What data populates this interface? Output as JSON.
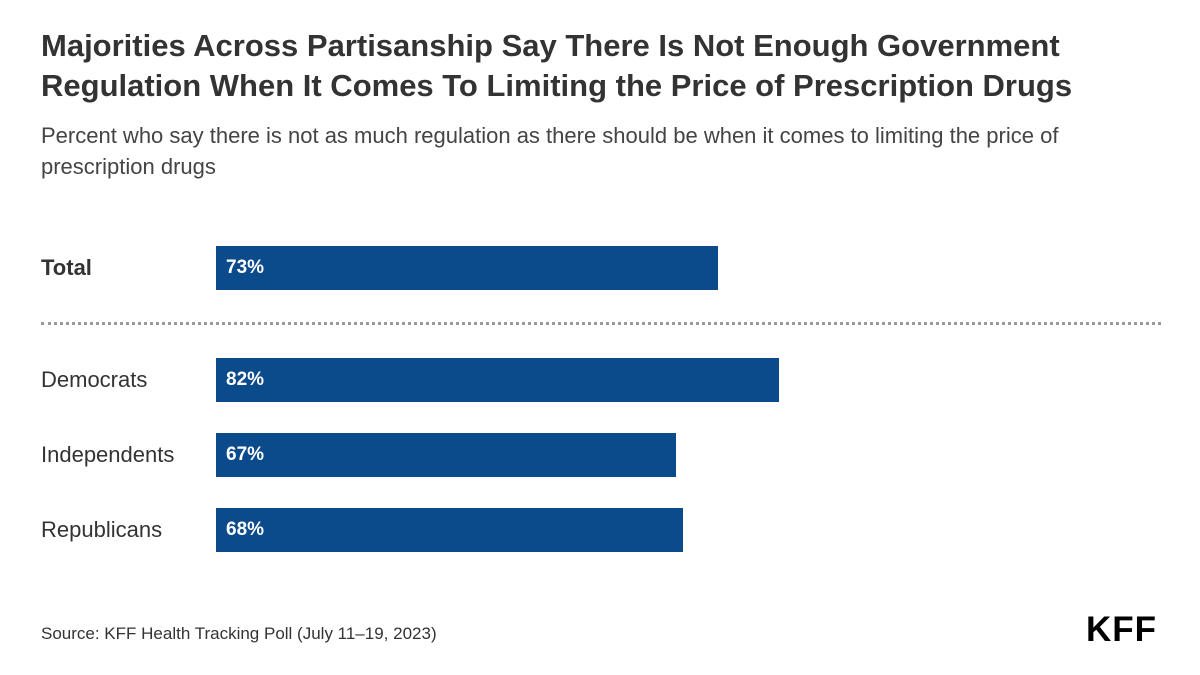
{
  "header": {
    "title": "Majorities Across Partisanship Say There Is Not Enough Government Regulation When It Comes To Limiting the Price of Prescription Drugs",
    "subtitle": "Percent who say there is not as much regulation as there should be when it comes to limiting the price of prescription drugs"
  },
  "chart_data": {
    "type": "bar",
    "orientation": "horizontal",
    "categories": [
      "Total",
      "Democrats",
      "Independents",
      "Republicans"
    ],
    "values": [
      73,
      82,
      67,
      68
    ],
    "value_labels": [
      "73%",
      "82%",
      "67%",
      "68%"
    ],
    "title": "Majorities Across Partisanship Say There Is Not Enough Government Regulation When It Comes To Limiting the Price of Prescription Drugs",
    "subtitle": "Percent who say there is not as much regulation as there should be when it comes to limiting the price of prescription drugs",
    "xlabel": "",
    "ylabel": "",
    "xlim": [
      0,
      100
    ],
    "grid": false,
    "legend": "none",
    "bar_color": "#0b4a8b"
  },
  "footer": {
    "source": "Source: KFF Health Tracking Poll (July 11–19, 2023)",
    "logo": "KFF"
  }
}
